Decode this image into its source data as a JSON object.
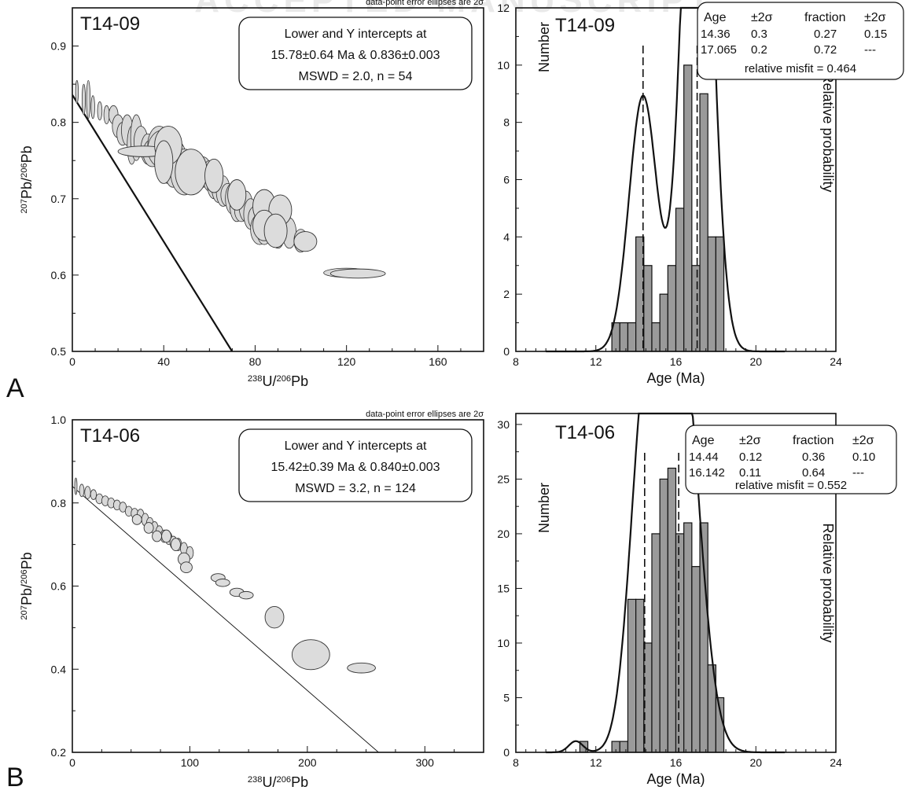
{
  "watermark": "ACCEPTED MANUSCRIPT",
  "chart_data": [
    {
      "panel": "A",
      "type": "scatter",
      "sample": "T14-09",
      "note": "data-point error ellipses are 2σ",
      "xlabel": "238U/206Pb",
      "ylabel": "207Pb/206Pb",
      "xlim": [
        0,
        180
      ],
      "ylim": [
        0.5,
        0.95
      ],
      "xticks": [
        0,
        40,
        80,
        120,
        160
      ],
      "yticks": [
        0.5,
        0.6,
        0.7,
        0.8,
        0.9
      ],
      "info_lines": [
        "Lower and Y intercepts at",
        "15.78±0.64 Ma &  0.836±0.003",
        "MSWD = 2.0, n = 54"
      ],
      "regression": {
        "y_intercept": 0.836,
        "x_intercept": 174
      },
      "ellipses": [
        {
          "x": 2,
          "y": 0.84,
          "dx": 0.6,
          "dy": 0.015,
          "rot": 0
        },
        {
          "x": 5,
          "y": 0.83,
          "dx": 0.7,
          "dy": 0.02,
          "rot": 0
        },
        {
          "x": 7,
          "y": 0.83,
          "dx": 0.8,
          "dy": 0.025,
          "rot": 0
        },
        {
          "x": 9,
          "y": 0.82,
          "dx": 0.8,
          "dy": 0.015,
          "rot": 0
        },
        {
          "x": 12,
          "y": 0.815,
          "dx": 1,
          "dy": 0.012,
          "rot": 0
        },
        {
          "x": 15,
          "y": 0.81,
          "dx": 1.2,
          "dy": 0.012,
          "rot": 0
        },
        {
          "x": 18,
          "y": 0.81,
          "dx": 2,
          "dy": 0.012,
          "rot": 0
        },
        {
          "x": 20,
          "y": 0.795,
          "dx": 2.5,
          "dy": 0.015,
          "rot": 0
        },
        {
          "x": 22,
          "y": 0.785,
          "dx": 2.5,
          "dy": 0.015,
          "rot": 0
        },
        {
          "x": 24,
          "y": 0.79,
          "dx": 2.5,
          "dy": 0.02,
          "rot": 0
        },
        {
          "x": 26,
          "y": 0.77,
          "dx": 2,
          "dy": 0.025,
          "rot": 0
        },
        {
          "x": 28,
          "y": 0.78,
          "dx": 2.5,
          "dy": 0.03,
          "rot": 0
        },
        {
          "x": 30,
          "y": 0.775,
          "dx": 3,
          "dy": 0.02,
          "rot": 0
        },
        {
          "x": 33,
          "y": 0.765,
          "dx": 3,
          "dy": 0.02,
          "rot": 0
        },
        {
          "x": 35,
          "y": 0.76,
          "dx": 4,
          "dy": 0.018,
          "rot": 0
        },
        {
          "x": 36,
          "y": 0.762,
          "dx": 12,
          "dy": 0.006,
          "rot": 0
        },
        {
          "x": 38,
          "y": 0.77,
          "dx": 5,
          "dy": 0.025,
          "rot": 0
        },
        {
          "x": 40,
          "y": 0.765,
          "dx": 7,
          "dy": 0.025,
          "rot": 0
        },
        {
          "x": 42,
          "y": 0.74,
          "dx": 4,
          "dy": 0.02,
          "rot": 0
        },
        {
          "x": 44,
          "y": 0.745,
          "dx": 4,
          "dy": 0.03,
          "rot": 0
        },
        {
          "x": 46,
          "y": 0.75,
          "dx": 4,
          "dy": 0.025,
          "rot": 0
        },
        {
          "x": 48,
          "y": 0.745,
          "dx": 4,
          "dy": 0.02,
          "rot": 0
        },
        {
          "x": 49,
          "y": 0.735,
          "dx": 6,
          "dy": 0.03,
          "rot": 0
        },
        {
          "x": 52,
          "y": 0.73,
          "dx": 4,
          "dy": 0.02,
          "rot": 0
        },
        {
          "x": 55,
          "y": 0.73,
          "dx": 3,
          "dy": 0.02,
          "rot": 0
        },
        {
          "x": 57,
          "y": 0.735,
          "dx": 4,
          "dy": 0.02,
          "rot": 0
        },
        {
          "x": 60,
          "y": 0.73,
          "dx": 3,
          "dy": 0.02,
          "rot": 0
        },
        {
          "x": 62,
          "y": 0.72,
          "dx": 3,
          "dy": 0.02,
          "rot": 0
        },
        {
          "x": 64,
          "y": 0.715,
          "dx": 3,
          "dy": 0.02,
          "rot": 0
        },
        {
          "x": 66,
          "y": 0.71,
          "dx": 3,
          "dy": 0.02,
          "rot": 0
        },
        {
          "x": 68,
          "y": 0.705,
          "dx": 3,
          "dy": 0.015,
          "rot": 0
        },
        {
          "x": 70,
          "y": 0.7,
          "dx": 3,
          "dy": 0.02,
          "rot": 0
        },
        {
          "x": 72,
          "y": 0.69,
          "dx": 3,
          "dy": 0.02,
          "rot": 0
        },
        {
          "x": 74,
          "y": 0.685,
          "dx": 3,
          "dy": 0.015,
          "rot": 0
        },
        {
          "x": 76,
          "y": 0.69,
          "dx": 3,
          "dy": 0.02,
          "rot": 0
        },
        {
          "x": 78,
          "y": 0.68,
          "dx": 3,
          "dy": 0.02,
          "rot": 0
        },
        {
          "x": 80,
          "y": 0.675,
          "dx": 3,
          "dy": 0.015,
          "rot": 0
        },
        {
          "x": 82,
          "y": 0.66,
          "dx": 4,
          "dy": 0.02,
          "rot": 0
        },
        {
          "x": 84,
          "y": 0.655,
          "dx": 3,
          "dy": 0.015,
          "rot": 0
        },
        {
          "x": 86,
          "y": 0.67,
          "dx": 3,
          "dy": 0.02,
          "rot": 0
        },
        {
          "x": 88,
          "y": 0.665,
          "dx": 3,
          "dy": 0.02,
          "rot": 0
        },
        {
          "x": 90,
          "y": 0.655,
          "dx": 3,
          "dy": 0.02,
          "rot": 0
        },
        {
          "x": 92,
          "y": 0.665,
          "dx": 4,
          "dy": 0.02,
          "rot": 0
        },
        {
          "x": 95,
          "y": 0.655,
          "dx": 3,
          "dy": 0.02,
          "rot": 0
        },
        {
          "x": 100,
          "y": 0.645,
          "dx": 3,
          "dy": 0.015,
          "rot": 0
        },
        {
          "x": 120,
          "y": 0.603,
          "dx": 10,
          "dy": 0.006,
          "rot": 0
        }
      ],
      "bigEllipses": [
        {
          "x": 31,
          "y": 0.762,
          "rx": 11,
          "ry": 0.007
        },
        {
          "x": 42,
          "y": 0.77,
          "rx": 6,
          "ry": 0.025
        },
        {
          "x": 52,
          "y": 0.735,
          "rx": 7,
          "ry": 0.03
        },
        {
          "x": 40,
          "y": 0.748,
          "rx": 4,
          "ry": 0.028
        },
        {
          "x": 84,
          "y": 0.69,
          "rx": 5,
          "ry": 0.022
        },
        {
          "x": 91,
          "y": 0.685,
          "rx": 5,
          "ry": 0.02
        },
        {
          "x": 84,
          "y": 0.665,
          "rx": 5,
          "ry": 0.02
        },
        {
          "x": 89,
          "y": 0.658,
          "rx": 5,
          "ry": 0.022
        },
        {
          "x": 62,
          "y": 0.73,
          "rx": 4,
          "ry": 0.022
        },
        {
          "x": 72,
          "y": 0.705,
          "rx": 4,
          "ry": 0.02
        },
        {
          "x": 102,
          "y": 0.644,
          "rx": 5,
          "ry": 0.013
        },
        {
          "x": 125,
          "y": 0.602,
          "rx": 12,
          "ry": 0.006
        }
      ]
    },
    {
      "panel": "A",
      "type": "bar",
      "sample": "T14-09",
      "xlabel": "Age (Ma)",
      "ylabel": "Number",
      "y2label": "Relative probability",
      "xlim": [
        8,
        24
      ],
      "ylim": [
        0,
        12
      ],
      "xticks": [
        8,
        12,
        16,
        20,
        24
      ],
      "yticks": [
        0,
        2,
        4,
        6,
        8,
        10,
        12
      ],
      "bin_width": 0.4,
      "bins": [
        {
          "x": 12.8,
          "value": 1
        },
        {
          "x": 13.2,
          "value": 1
        },
        {
          "x": 13.6,
          "value": 1
        },
        {
          "x": 14.0,
          "value": 4
        },
        {
          "x": 14.4,
          "value": 3
        },
        {
          "x": 14.8,
          "value": 1
        },
        {
          "x": 15.2,
          "value": 2
        },
        {
          "x": 15.6,
          "value": 3
        },
        {
          "x": 16.0,
          "value": 5
        },
        {
          "x": 16.4,
          "value": 10
        },
        {
          "x": 16.8,
          "value": 3
        },
        {
          "x": 17.2,
          "value": 9
        },
        {
          "x": 17.6,
          "value": 4
        },
        {
          "x": 18.0,
          "value": 4
        }
      ],
      "components": [
        {
          "age": 14.36,
          "err": 0.3,
          "fraction": 0.27,
          "ferr": "0.15",
          "sd": 0.7
        },
        {
          "age": 17.065,
          "err": 0.2,
          "fraction": 0.72,
          "ferr": "---",
          "sd": 0.7
        }
      ],
      "curve_scale": 58,
      "dashed_lines": [
        14.36,
        17.065
      ],
      "table": {
        "headers": [
          "Age",
          "±2σ",
          "fraction",
          "±2σ"
        ],
        "rows": [
          [
            "14.36",
            "0.3",
            "0.27",
            "0.15"
          ],
          [
            "17.065",
            "0.2",
            "0.72",
            "---"
          ]
        ],
        "footer": "relative misfit = 0.464"
      }
    },
    {
      "panel": "B",
      "type": "scatter",
      "sample": "T14-06",
      "note": "data-point error ellipses are 2σ",
      "xlabel": "238U/206Pb",
      "ylabel": "207Pb/206Pb",
      "xlim": [
        0,
        350
      ],
      "ylim": [
        0.2,
        1.0
      ],
      "xticks": [
        0,
        100,
        200,
        300
      ],
      "yticks": [
        0.2,
        0.4,
        0.6,
        0.8,
        1.0
      ],
      "info_lines": [
        "Lower and Y intercepts at",
        "15.42±0.39 Ma & 0.840±0.003",
        "MSWD = 3.2, n = 124"
      ],
      "regression": {
        "y_intercept": 0.84,
        "x_intercept": 342
      },
      "ellipses": [
        {
          "x": 3,
          "y": 0.84,
          "dx": 1,
          "dy": 0.02,
          "rot": 0
        },
        {
          "x": 8,
          "y": 0.83,
          "dx": 2,
          "dy": 0.015,
          "rot": 0
        },
        {
          "x": 13,
          "y": 0.825,
          "dx": 2.5,
          "dy": 0.015,
          "rot": 0
        },
        {
          "x": 18,
          "y": 0.82,
          "dx": 2.5,
          "dy": 0.012,
          "rot": 0
        },
        {
          "x": 23,
          "y": 0.81,
          "dx": 3,
          "dy": 0.012,
          "rot": 0
        },
        {
          "x": 28,
          "y": 0.805,
          "dx": 3,
          "dy": 0.012,
          "rot": 0
        },
        {
          "x": 33,
          "y": 0.8,
          "dx": 3,
          "dy": 0.012,
          "rot": 0
        },
        {
          "x": 38,
          "y": 0.795,
          "dx": 3,
          "dy": 0.012,
          "rot": 0
        },
        {
          "x": 43,
          "y": 0.79,
          "dx": 3,
          "dy": 0.012,
          "rot": 0
        },
        {
          "x": 48,
          "y": 0.78,
          "dx": 3,
          "dy": 0.012,
          "rot": 0
        },
        {
          "x": 53,
          "y": 0.775,
          "dx": 3,
          "dy": 0.012,
          "rot": 0
        },
        {
          "x": 58,
          "y": 0.77,
          "dx": 3,
          "dy": 0.015,
          "rot": 0
        },
        {
          "x": 62,
          "y": 0.76,
          "dx": 3,
          "dy": 0.015,
          "rot": 0
        },
        {
          "x": 66,
          "y": 0.75,
          "dx": 3,
          "dy": 0.015,
          "rot": 0
        },
        {
          "x": 70,
          "y": 0.74,
          "dx": 3,
          "dy": 0.015,
          "rot": 0
        },
        {
          "x": 74,
          "y": 0.73,
          "dx": 3,
          "dy": 0.015,
          "rot": 0
        },
        {
          "x": 78,
          "y": 0.72,
          "dx": 3,
          "dy": 0.015,
          "rot": 0
        },
        {
          "x": 82,
          "y": 0.715,
          "dx": 3,
          "dy": 0.015,
          "rot": 0
        },
        {
          "x": 86,
          "y": 0.705,
          "dx": 3,
          "dy": 0.015,
          "rot": 0
        },
        {
          "x": 90,
          "y": 0.7,
          "dx": 3,
          "dy": 0.015,
          "rot": 0
        },
        {
          "x": 95,
          "y": 0.69,
          "dx": 3,
          "dy": 0.015,
          "rot": 0
        },
        {
          "x": 100,
          "y": 0.68,
          "dx": 3,
          "dy": 0.015,
          "rot": 0
        }
      ],
      "bigEllipses": [
        {
          "x": 55,
          "y": 0.76,
          "rx": 4,
          "ry": 0.012
        },
        {
          "x": 65,
          "y": 0.74,
          "rx": 4,
          "ry": 0.013
        },
        {
          "x": 72,
          "y": 0.72,
          "rx": 4,
          "ry": 0.013
        },
        {
          "x": 80,
          "y": 0.72,
          "rx": 4,
          "ry": 0.015
        },
        {
          "x": 88,
          "y": 0.7,
          "rx": 4,
          "ry": 0.015
        },
        {
          "x": 95,
          "y": 0.665,
          "rx": 5,
          "ry": 0.015
        },
        {
          "x": 97,
          "y": 0.645,
          "rx": 5,
          "ry": 0.013
        },
        {
          "x": 124,
          "y": 0.62,
          "rx": 6,
          "ry": 0.01
        },
        {
          "x": 128,
          "y": 0.608,
          "rx": 6,
          "ry": 0.009
        },
        {
          "x": 140,
          "y": 0.585,
          "rx": 6,
          "ry": 0.01
        },
        {
          "x": 148,
          "y": 0.578,
          "rx": 6,
          "ry": 0.009
        },
        {
          "x": 172,
          "y": 0.525,
          "rx": 8,
          "ry": 0.026
        },
        {
          "x": 203,
          "y": 0.435,
          "rx": 16,
          "ry": 0.036
        },
        {
          "x": 246,
          "y": 0.403,
          "rx": 12,
          "ry": 0.012
        }
      ]
    },
    {
      "panel": "B",
      "type": "bar",
      "sample": "T14-06",
      "xlabel": "Age (Ma)",
      "ylabel": "Number",
      "y2label": "Relative probability",
      "xlim": [
        8,
        24
      ],
      "ylim": [
        0,
        31
      ],
      "xticks": [
        8,
        12,
        16,
        20,
        24
      ],
      "yticks": [
        0,
        5,
        10,
        15,
        20,
        25,
        30
      ],
      "bin_width": 0.4,
      "bins": [
        {
          "x": 11.2,
          "value": 1
        },
        {
          "x": 12.8,
          "value": 1
        },
        {
          "x": 13.2,
          "value": 1
        },
        {
          "x": 13.6,
          "value": 14
        },
        {
          "x": 14.0,
          "value": 14
        },
        {
          "x": 14.4,
          "value": 10
        },
        {
          "x": 14.8,
          "value": 20
        },
        {
          "x": 15.2,
          "value": 25
        },
        {
          "x": 15.6,
          "value": 26
        },
        {
          "x": 16.0,
          "value": 20
        },
        {
          "x": 16.4,
          "value": 21
        },
        {
          "x": 16.8,
          "value": 17
        },
        {
          "x": 17.2,
          "value": 21
        },
        {
          "x": 17.6,
          "value": 8
        },
        {
          "x": 18.0,
          "value": 5
        }
      ],
      "components": [
        {
          "age": 14.44,
          "err": 0.12,
          "fraction": 0.36,
          "ferr": "0.10",
          "sd": 0.75
        },
        {
          "age": 16.142,
          "err": 0.11,
          "fraction": 0.64,
          "ferr": "---",
          "sd": 0.95
        }
      ],
      "curve_scale": 150,
      "dashed_lines": [
        14.44,
        16.142
      ],
      "table": {
        "headers": [
          "Age",
          "±2σ",
          "fraction",
          "±2σ"
        ],
        "rows": [
          [
            "14.44",
            "0.12",
            "0.36",
            "0.10"
          ],
          [
            "16.142",
            "0.11",
            "0.64",
            "---"
          ]
        ],
        "footer": "relative misfit = 0.552"
      }
    }
  ],
  "panel_labels": [
    "A",
    "B"
  ]
}
